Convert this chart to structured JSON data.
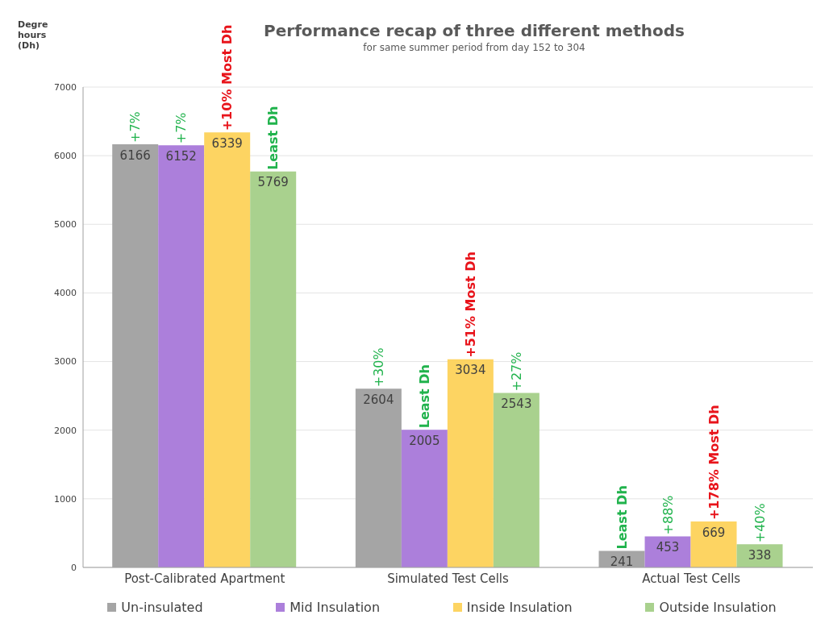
{
  "chart_data": {
    "type": "bar",
    "title": "Performance recap of three different methods",
    "subtitle": "for same summer period from day 152 to 304",
    "ylabel": "Degre hours (Dh)",
    "categories": [
      "Post-Calibrated Apartment",
      "Simulated Test Cells",
      "Actual Test Cells"
    ],
    "series": [
      {
        "name": "Un-insulated",
        "color": "#a5a5a5",
        "values": [
          6166,
          2604,
          241
        ]
      },
      {
        "name": "Mid Insulation",
        "color": "#ac7fdb",
        "values": [
          6152,
          2005,
          453
        ]
      },
      {
        "name": "Inside Insulation",
        "color": "#fdd462",
        "values": [
          6339,
          3034,
          669
        ]
      },
      {
        "name": "Outside Insulation",
        "color": "#a9d18e",
        "values": [
          5769,
          2543,
          338
        ]
      }
    ],
    "ylim": [
      0,
      7000
    ],
    "yticks": [
      0,
      1000,
      2000,
      3000,
      4000,
      5000,
      6000,
      7000
    ],
    "grid": "y",
    "legend": "bottom",
    "data_labels": true,
    "annotations": [
      "+7%",
      "+7%",
      "+10% Most Dh",
      "Least Dh",
      "+30%",
      "Least Dh",
      "+51% Most Dh",
      "+27%",
      "Least Dh",
      "+88%",
      "+178% Most Dh",
      "+40%"
    ]
  }
}
